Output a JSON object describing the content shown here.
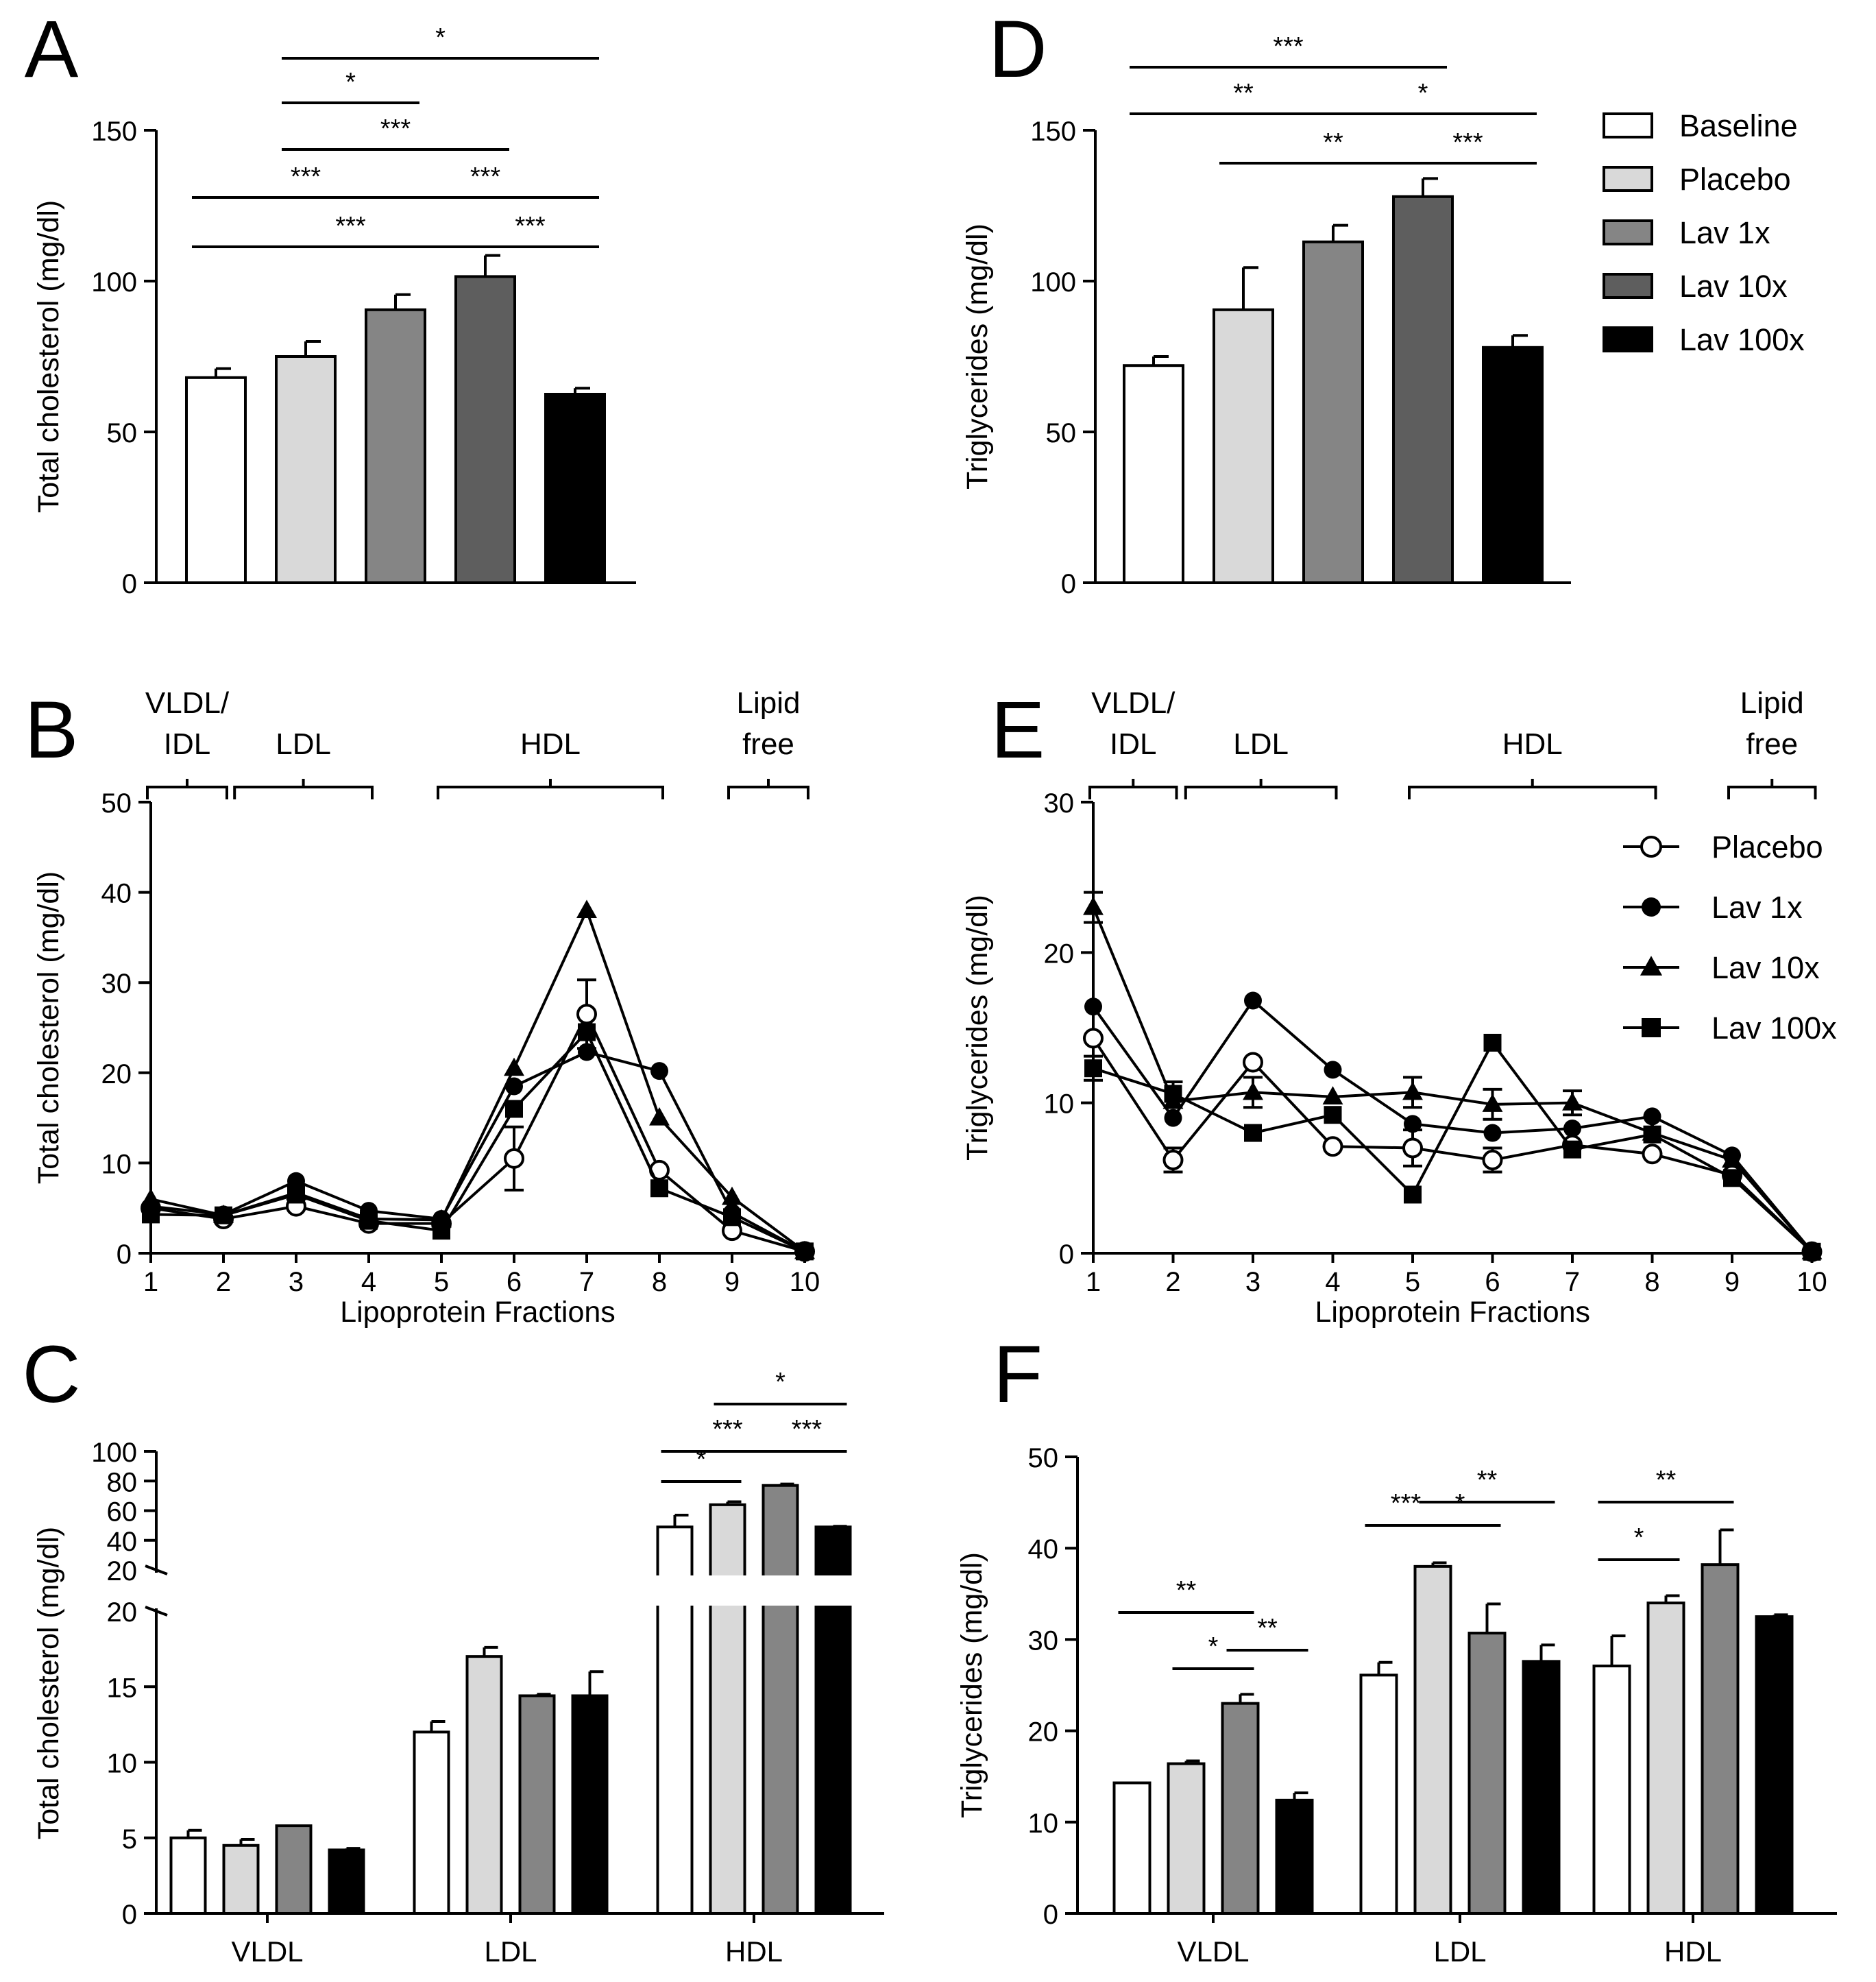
{
  "figure": {
    "group_names": [
      "Baseline",
      "Placebo",
      "Lav 1x",
      "Lav 10x",
      "Lav 100x"
    ],
    "group_colors": [
      "#ffffff",
      "#d9d9d9",
      "#858585",
      "#5e5e5e",
      "#000000"
    ]
  },
  "chart_data": [
    {
      "id": "A",
      "type": "bar",
      "panel_label": "A",
      "ylabel": "Total cholesterol (mg/dl)",
      "ylim": [
        0,
        150
      ],
      "yticks": [
        "0",
        "50",
        "100",
        "150"
      ],
      "categories": [
        "Baseline",
        "Placebo",
        "Lav 1x",
        "Lav 10x",
        "Lav 100x"
      ],
      "values": [
        68,
        75,
        90.5,
        101.5,
        62.5
      ],
      "errors": [
        3,
        5,
        5,
        7,
        2
      ],
      "significance": [
        {
          "from": 1,
          "to": 4,
          "label": "*"
        },
        {
          "from": 1,
          "to": 2,
          "label": "*"
        },
        {
          "from": 1,
          "to": 3,
          "label": "***"
        },
        {
          "from": 0,
          "to": 2,
          "label": "***"
        },
        {
          "from": 2,
          "to": 4,
          "label": "***"
        },
        {
          "from": 0,
          "to": 3,
          "label": "***"
        },
        {
          "from": 3,
          "to": 4,
          "label": "***"
        }
      ]
    },
    {
      "id": "D",
      "type": "bar",
      "panel_label": "D",
      "ylabel": "Triglycerides (mg/dl)",
      "ylim": [
        0,
        150
      ],
      "yticks": [
        "0",
        "50",
        "100",
        "150"
      ],
      "categories": [
        "Baseline",
        "Placebo",
        "Lav 1x",
        "Lav 10x",
        "Lav 100x"
      ],
      "values": [
        72,
        90.5,
        113,
        128,
        78
      ],
      "errors": [
        3,
        14,
        5.5,
        6,
        4
      ],
      "legend": [
        "Baseline",
        "Placebo",
        "Lav 1x",
        "Lav 10x",
        "Lav 100x"
      ],
      "significance": [
        {
          "from": 0,
          "to": 3,
          "label": "***"
        },
        {
          "from": 0,
          "to": 2,
          "label": "**"
        },
        {
          "from": 2,
          "to": 4,
          "label": "*"
        },
        {
          "from": 1,
          "to": 3,
          "label": "**"
        },
        {
          "from": 3,
          "to": 4,
          "label": "***"
        }
      ]
    },
    {
      "id": "B",
      "type": "line",
      "panel_label": "B",
      "xlabel": "Lipoprotein Fractions",
      "ylabel": "Total cholesterol (mg/dl)",
      "ylim": [
        0,
        50
      ],
      "yticks": [
        "0",
        "10",
        "20",
        "30",
        "40",
        "50"
      ],
      "x": [
        1,
        2,
        3,
        4,
        5,
        6,
        7,
        8,
        9,
        10
      ],
      "xticks": [
        "1",
        "2",
        "3",
        "4",
        "5",
        "6",
        "7",
        "8",
        "9",
        "10"
      ],
      "regions": [
        {
          "label": "VLDL/\nIDL",
          "from": 1,
          "to": 2
        },
        {
          "label": "LDL",
          "from": 2.2,
          "to": 4
        },
        {
          "label": "HDL",
          "from": 5,
          "to": 8
        },
        {
          "label": "Lipid\nfree",
          "from": 9,
          "to": 10
        }
      ],
      "series": [
        {
          "name": "Placebo",
          "marker": "open-circle",
          "values": [
            5,
            3.8,
            5.2,
            3.3,
            3.3,
            10.5,
            26.5,
            9.2,
            2.5,
            0.2
          ],
          "errors": [
            0,
            0,
            0,
            0,
            0,
            3.5,
            3.8,
            0,
            0,
            0
          ]
        },
        {
          "name": "Lav 1x",
          "marker": "circle",
          "values": [
            5.2,
            4.3,
            8,
            4.7,
            3.8,
            18.5,
            22.3,
            20.2,
            4.5,
            0.2
          ]
        },
        {
          "name": "Lav 10x",
          "marker": "triangle",
          "values": [
            6,
            4.2,
            6.7,
            3.8,
            3.7,
            20.5,
            38,
            15,
            6.2,
            0.2
          ]
        },
        {
          "name": "Lav 100x",
          "marker": "square",
          "values": [
            4.3,
            4.2,
            6.5,
            3.6,
            2.5,
            16,
            24.5,
            7.2,
            4,
            0.2
          ]
        }
      ]
    },
    {
      "id": "E",
      "type": "line",
      "panel_label": "E",
      "xlabel": "Lipoprotein Fractions",
      "ylabel": "Triglycerides (mg/dl)",
      "ylim": [
        0,
        30
      ],
      "yticks": [
        "0",
        "10",
        "20",
        "30"
      ],
      "x": [
        1,
        2,
        3,
        4,
        5,
        6,
        7,
        8,
        9,
        10
      ],
      "xticks": [
        "1",
        "2",
        "3",
        "4",
        "5",
        "6",
        "7",
        "8",
        "9",
        "10"
      ],
      "regions": [
        {
          "label": "VLDL/\nIDL",
          "from": 1,
          "to": 2
        },
        {
          "label": "LDL",
          "from": 2.2,
          "to": 4
        },
        {
          "label": "HDL",
          "from": 5,
          "to": 8
        },
        {
          "label": "Lipid\nfree",
          "from": 9,
          "to": 10
        }
      ],
      "legend": [
        "Placebo",
        "Lav 1x",
        "Lav 10x",
        "Lav 100x"
      ],
      "series": [
        {
          "name": "Placebo",
          "marker": "open-circle",
          "values": [
            14.3,
            6.2,
            12.7,
            7.1,
            7,
            6.2,
            7.2,
            6.6,
            5.2,
            0.1
          ],
          "errors": [
            0,
            0.8,
            0,
            0,
            1.2,
            0.8,
            0,
            0,
            0,
            0
          ]
        },
        {
          "name": "Lav 1x",
          "marker": "circle",
          "values": [
            16.4,
            9,
            16.8,
            12.2,
            8.6,
            8,
            8.3,
            9.1,
            6.5,
            0.1
          ]
        },
        {
          "name": "Lav 10x",
          "marker": "triangle",
          "values": [
            23,
            10.1,
            10.7,
            10.4,
            10.7,
            9.9,
            10,
            8,
            6.2,
            0.1
          ],
          "errors": [
            1,
            0,
            1,
            0,
            1,
            1,
            0.8,
            0,
            0,
            0
          ]
        },
        {
          "name": "Lav 100x",
          "marker": "square",
          "values": [
            12.3,
            10.6,
            8,
            9.2,
            3.9,
            14,
            6.9,
            7.9,
            5,
            0.1
          ],
          "errors": [
            0.8,
            0.8,
            0,
            0,
            0,
            0,
            0,
            0,
            0,
            0
          ]
        }
      ]
    },
    {
      "id": "C",
      "type": "bar",
      "panel_label": "C",
      "ylabel": "Total cholesterol (mg/dl)",
      "broken_axis": true,
      "ylim_lower": [
        0,
        20
      ],
      "ylim_upper": [
        20,
        100
      ],
      "yticks_lower": [
        "0",
        "5",
        "10",
        "15",
        "20"
      ],
      "yticks_upper": [
        "20",
        "40",
        "60",
        "80",
        "100"
      ],
      "categories": [
        "VLDL",
        "LDL",
        "HDL"
      ],
      "series": [
        {
          "name": "Baseline",
          "values": [
            5,
            12,
            49
          ],
          "errors": [
            0.5,
            0.7,
            8
          ]
        },
        {
          "name": "Placebo",
          "values": [
            4.5,
            17,
            64
          ],
          "errors": [
            0.4,
            0.6,
            2
          ]
        },
        {
          "name": "Lav 1x",
          "values": [
            5.8,
            14.4,
            77
          ],
          "errors": [
            0,
            0.1,
            1
          ]
        },
        {
          "name": "Lav 100x",
          "values": [
            4.2,
            14.4,
            49
          ],
          "errors": [
            0.1,
            1.6,
            0.5
          ]
        }
      ],
      "significance": [
        {
          "category": 2,
          "from": 0,
          "to": 1,
          "label": "*"
        },
        {
          "category": 2,
          "from": 0,
          "to": 2,
          "label": "***"
        },
        {
          "category": 2,
          "from": 2,
          "to": 3,
          "label": "***"
        },
        {
          "category": 2,
          "from": 1,
          "to": 3,
          "label": "*"
        }
      ]
    },
    {
      "id": "F",
      "type": "bar",
      "panel_label": "F",
      "ylabel": "Triglycerides (mg/dl)",
      "ylim": [
        0,
        50
      ],
      "yticks": [
        "0",
        "10",
        "20",
        "30",
        "40",
        "50"
      ],
      "categories": [
        "VLDL",
        "LDL",
        "HDL"
      ],
      "series": [
        {
          "name": "Baseline",
          "values": [
            14.3,
            26.1,
            27.1
          ],
          "errors": [
            0,
            1.4,
            3.3
          ]
        },
        {
          "name": "Placebo",
          "values": [
            16.4,
            38,
            34
          ],
          "errors": [
            0.3,
            0.4,
            0.8
          ]
        },
        {
          "name": "Lav 1x",
          "values": [
            23,
            30.7,
            38.2
          ],
          "errors": [
            1,
            3.2,
            3.8
          ]
        },
        {
          "name": "Lav 100x",
          "values": [
            12.4,
            27.6,
            32.5
          ],
          "errors": [
            0.8,
            1.8,
            0.2
          ]
        }
      ],
      "significance": [
        {
          "category": 0,
          "from": 0,
          "to": 2,
          "label": "**"
        },
        {
          "category": 0,
          "from": 1,
          "to": 2,
          "label": "*"
        },
        {
          "category": 0,
          "from": 2,
          "to": 3,
          "label": "**"
        },
        {
          "category": 1,
          "from": 0,
          "to": 1,
          "label": "***"
        },
        {
          "category": 1,
          "from": 1,
          "to": 2,
          "label": "*"
        },
        {
          "category": 1,
          "from": 1,
          "to": 3,
          "label": "**"
        },
        {
          "category": 2,
          "from": 0,
          "to": 1,
          "label": "*"
        },
        {
          "category": 2,
          "from": 0,
          "to": 2,
          "label": "**"
        }
      ]
    }
  ]
}
